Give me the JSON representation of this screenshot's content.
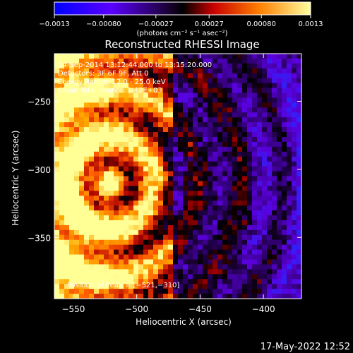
{
  "chart_data": {
    "type": "heatmap",
    "title": "Reconstructed RHESSI Image",
    "xlabel": "Heliocentric X (arcsec)",
    "ylabel": "Heliocentric Y (arcsec)",
    "xlim": [
      -565,
      -370
    ],
    "ylim": [
      -395,
      -215
    ],
    "xticks": [
      -550,
      -500,
      -450,
      -400
    ],
    "yticks": [
      -250,
      -300,
      -350
    ],
    "xtick_labels": [
      "−550",
      "−500",
      "−450",
      "−400"
    ],
    "ytick_labels": [
      "−250",
      "−300",
      "−350"
    ],
    "colorbar": {
      "min": -0.0013,
      "max": 0.0013,
      "ticks": [
        -0.0013,
        -0.0008,
        -0.00027,
        0.00027,
        0.0008,
        0.0013
      ],
      "tick_labels": [
        "−0.0013",
        "−0.00080",
        "−0.00027",
        "0.00027",
        "0.00080",
        "0.0013"
      ],
      "units_label": "(photons cm⁻² s⁻¹ asec⁻²)",
      "colors": [
        "#0000ff",
        "#5a00ff",
        "#000000",
        "#c80000",
        "#ff8000",
        "#ffff80"
      ]
    },
    "annotations": {
      "date_range": "24-Sep-2014 13:12:44.000 to 13:15:20.000",
      "detectors": "Detectors: 3F 6F 9F, Att 0",
      "energy": "Energy Range: 12.0 - 25.0 keV",
      "method": "Clean    Total counts: 1.42E+03",
      "peak": "Position of Peak = [−521,−310]"
    },
    "peak": {
      "x": -521,
      "y": -310
    },
    "grid": false
  },
  "timestamp": "17-May-2022 12:52"
}
